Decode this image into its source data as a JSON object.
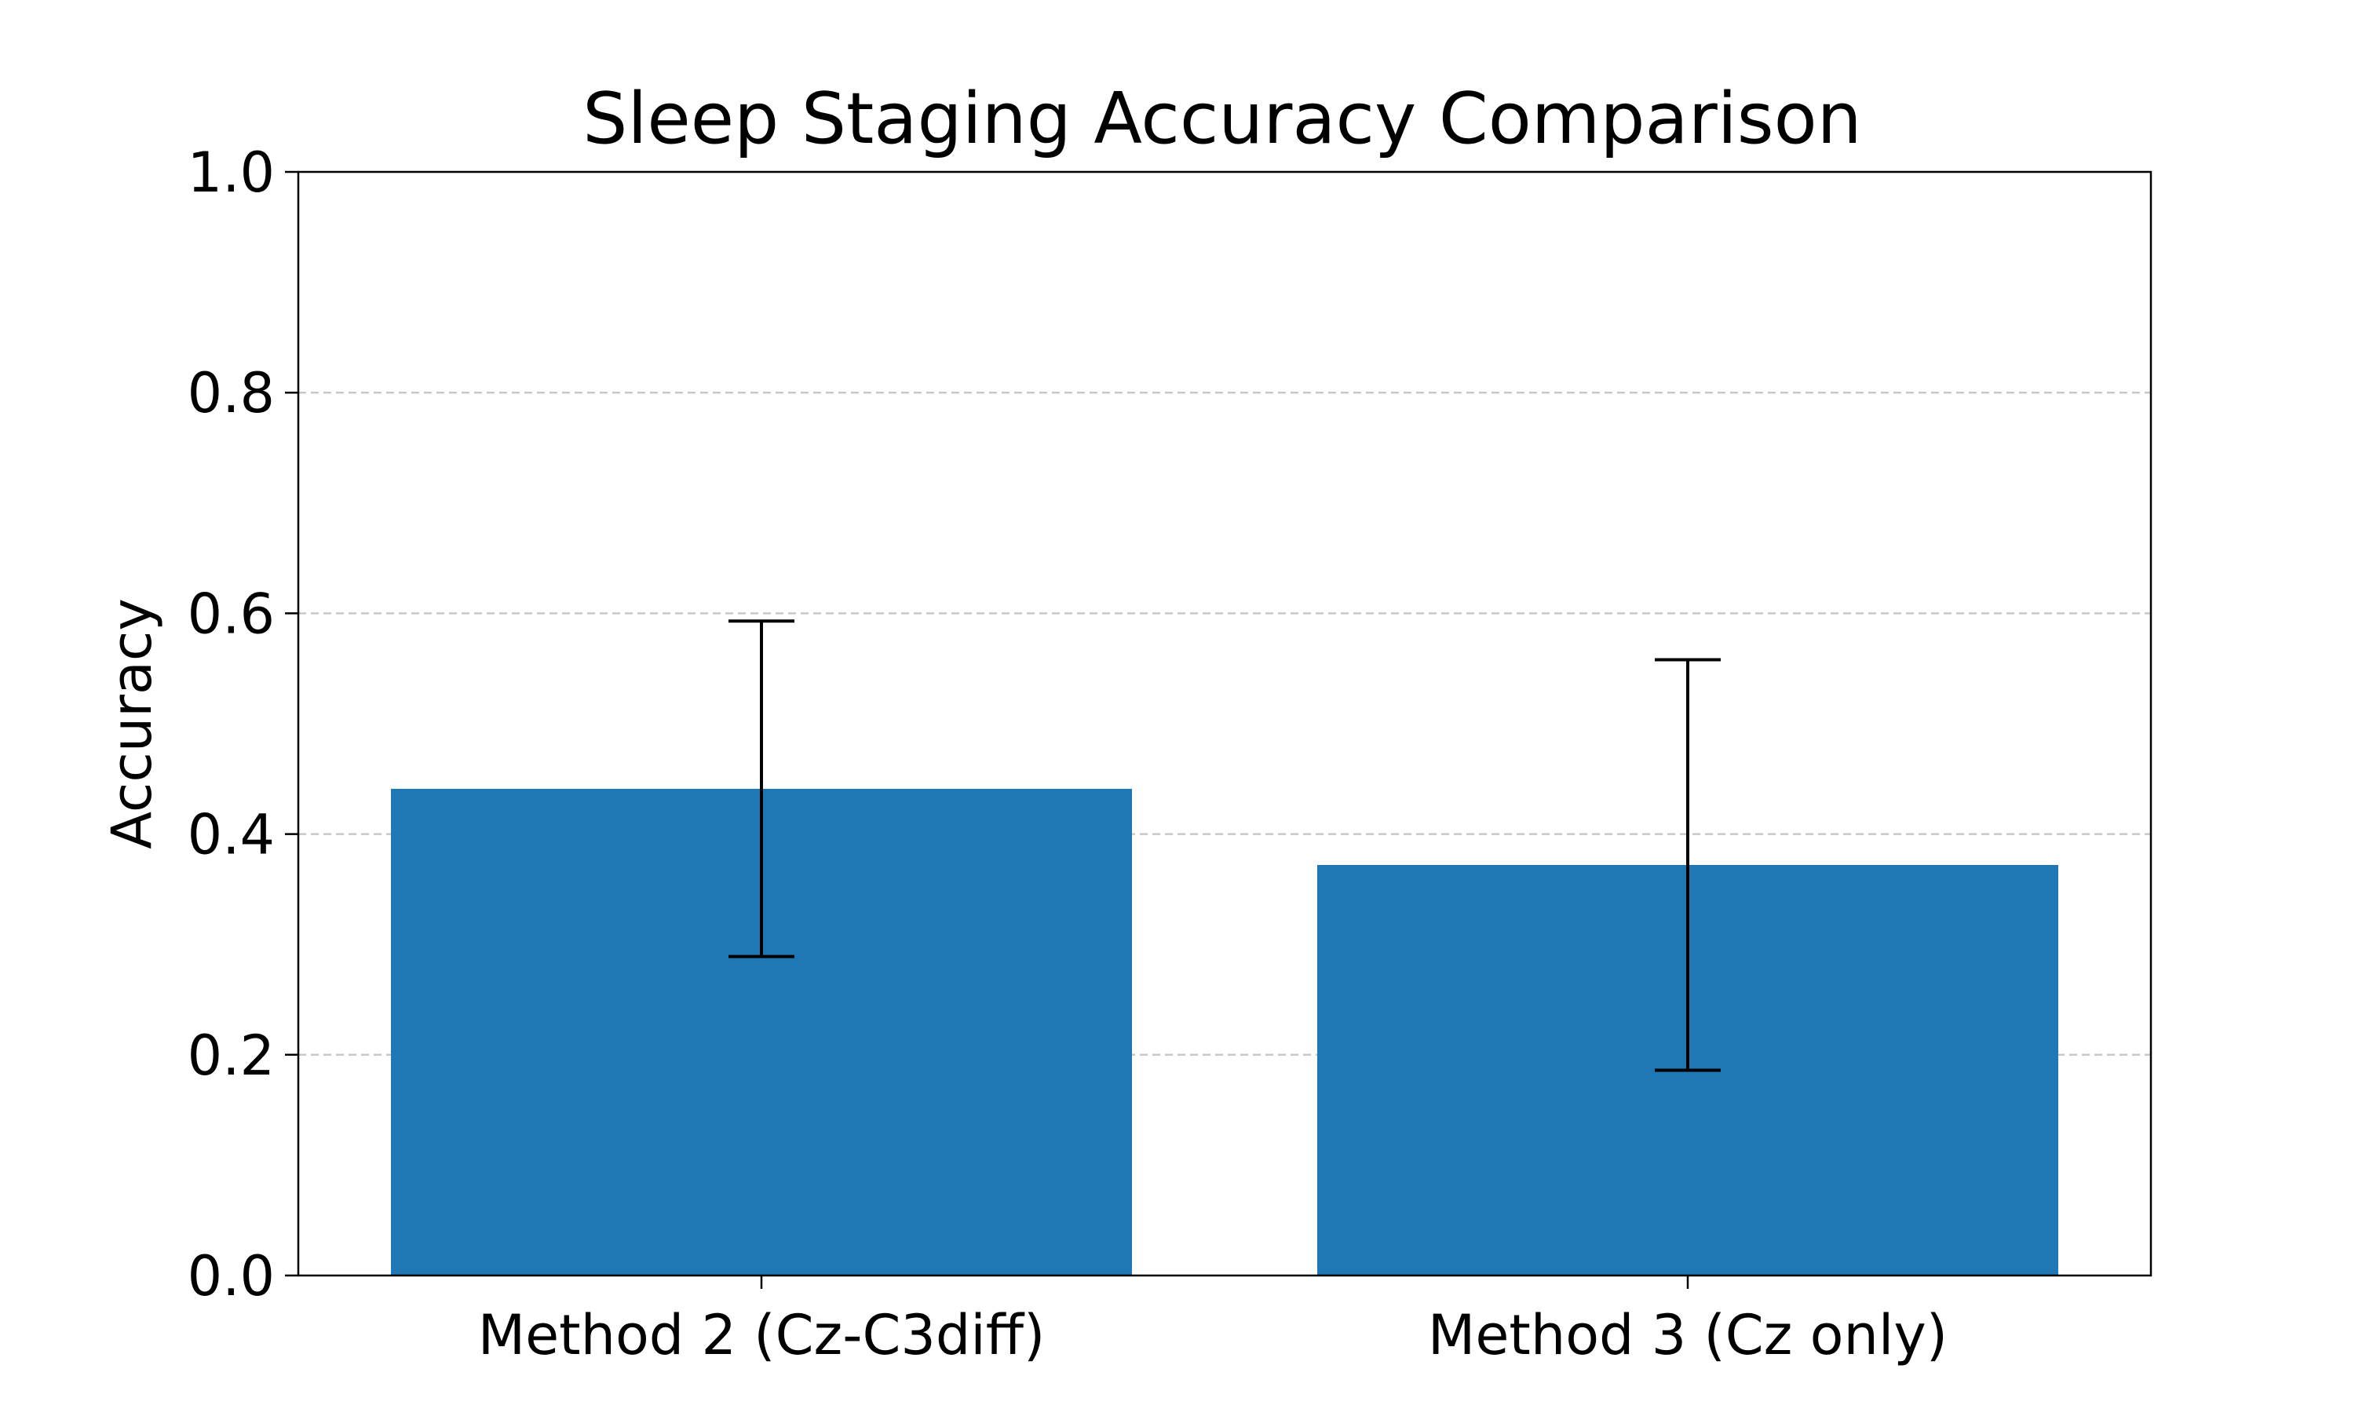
{
  "chart_data": {
    "type": "bar",
    "title": "Sleep Staging Accuracy Comparison",
    "xlabel": "",
    "ylabel": "Accuracy",
    "categories": [
      "Method 2 (Cz-C3diff)",
      "Method 3 (Cz only)"
    ],
    "values": [
      0.441,
      0.372
    ],
    "errors": [
      0.152,
      0.186
    ],
    "ylim": [
      0,
      1.0
    ],
    "yticks": [
      0.0,
      0.2,
      0.4,
      0.6,
      0.8,
      1.0
    ],
    "ytick_labels": [
      "0.0",
      "0.2",
      "0.4",
      "0.6",
      "0.8",
      "1.0"
    ],
    "grid": {
      "axis": "y",
      "style": "dashed"
    },
    "colors": {
      "bar": "#1f77b4",
      "errorbar": "#000000",
      "grid": "#c8c8c8",
      "axis": "#000000"
    }
  }
}
